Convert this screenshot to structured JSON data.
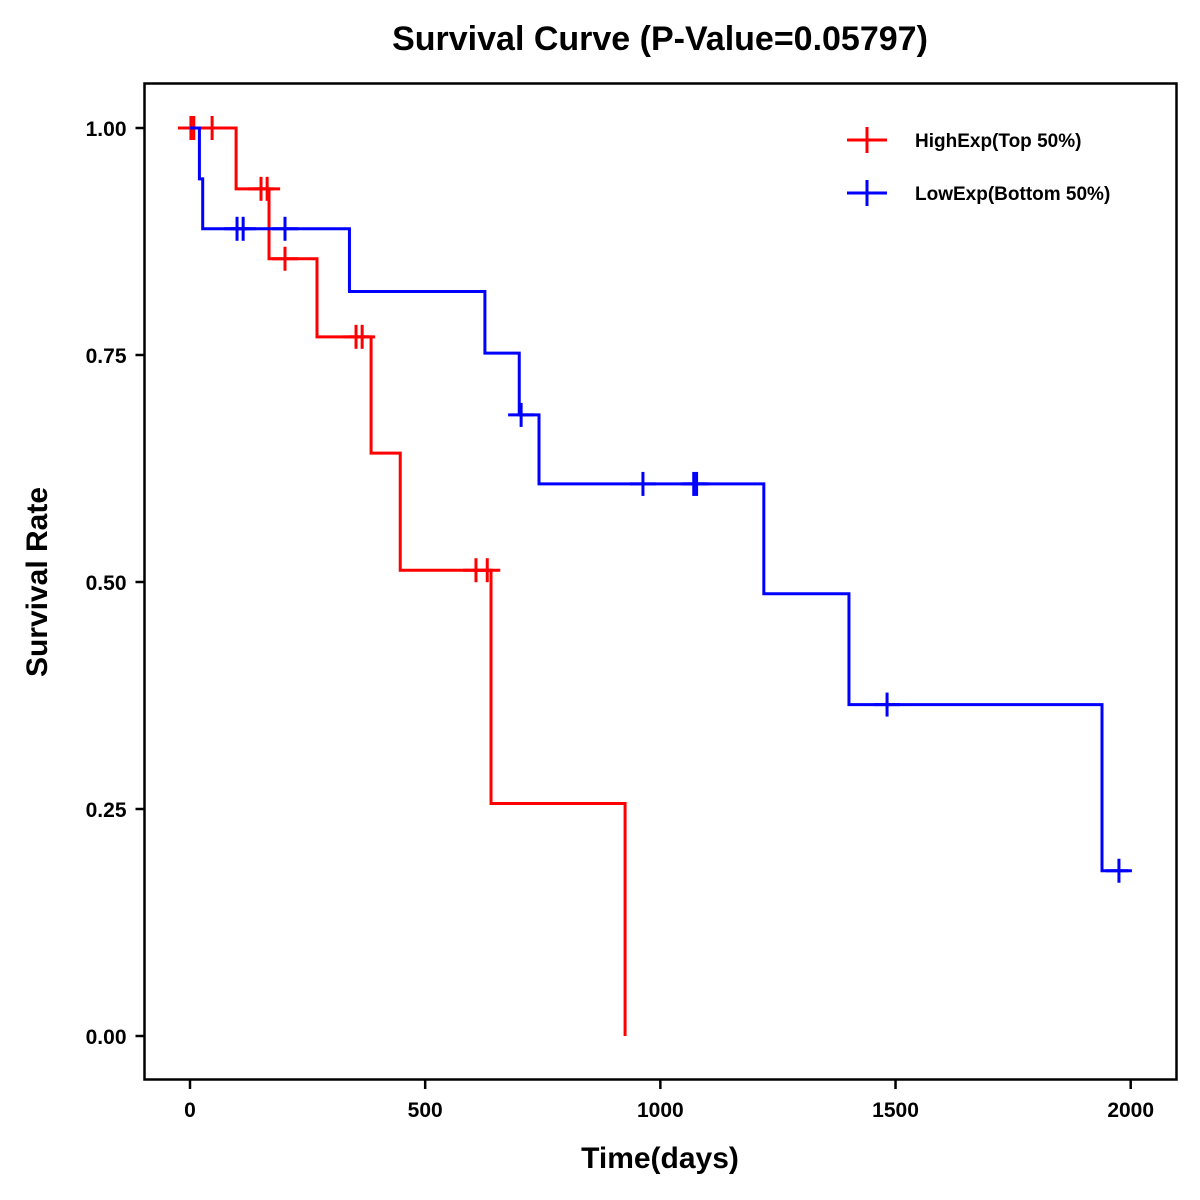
{
  "chart_data": {
    "type": "line",
    "subtype": "kaplan-meier step",
    "title": "Survival Curve (P-Value=0.05797)",
    "xlabel": "Time(days)",
    "ylabel": "Survival Rate",
    "xlim": [
      -90,
      2090
    ],
    "ylim": [
      -0.05,
      1.05
    ],
    "x_ticks": [
      0,
      500,
      1000,
      1500,
      2000
    ],
    "x_tick_labels": [
      "0",
      "500",
      "1000",
      "1500",
      "2000"
    ],
    "y_ticks": [
      0,
      0.25,
      0.5,
      0.75,
      1.0
    ],
    "y_tick_labels": [
      "0.00",
      "0.25",
      "0.50",
      "0.75",
      "1.00"
    ],
    "grid": false,
    "legend_position": "top-right",
    "series": [
      {
        "name": "HighExp(Top 50%)",
        "color": "#ff0000",
        "steps": [
          {
            "time": 0,
            "survival": 1.0
          },
          {
            "time": 98,
            "survival": 0.933
          },
          {
            "time": 168,
            "survival": 0.856
          },
          {
            "time": 270,
            "survival": 0.77
          },
          {
            "time": 385,
            "survival": 0.642
          },
          {
            "time": 447,
            "survival": 0.513
          },
          {
            "time": 640,
            "survival": 0.256
          },
          {
            "time": 925,
            "survival": 0.0
          }
        ],
        "end_time": 925,
        "censored_times": [
          2,
          8,
          47,
          151,
          164,
          202,
          353,
          366,
          608,
          632
        ]
      },
      {
        "name": "LowExp(Bottom 50%)",
        "color": "#0000ff",
        "steps": [
          {
            "time": 0,
            "survival": 1.0
          },
          {
            "time": 20,
            "survival": 0.944
          },
          {
            "time": 27,
            "survival": 0.889
          },
          {
            "time": 339,
            "survival": 0.82
          },
          {
            "time": 627,
            "survival": 0.752
          },
          {
            "time": 700,
            "survival": 0.684
          },
          {
            "time": 742,
            "survival": 0.608
          },
          {
            "time": 1220,
            "survival": 0.487
          },
          {
            "time": 1401,
            "survival": 0.365
          },
          {
            "time": 1939,
            "survival": 0.182
          }
        ],
        "end_time": 1995,
        "censored_times": [
          100,
          113,
          202,
          704,
          963,
          1071,
          1077,
          1482,
          1975
        ]
      }
    ]
  }
}
